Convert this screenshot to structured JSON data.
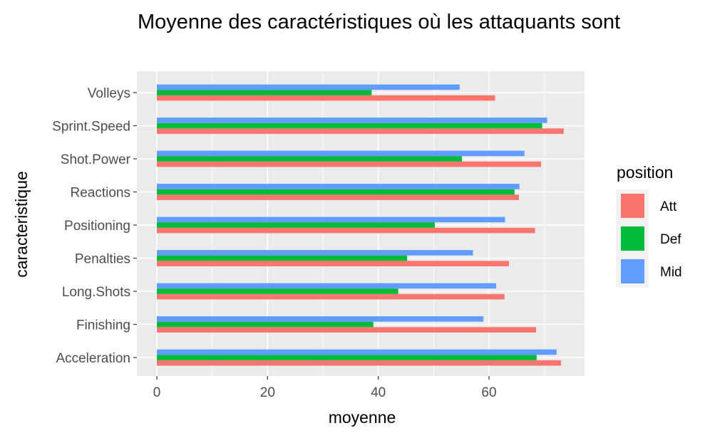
{
  "chart_data": {
    "type": "bar",
    "orientation": "horizontal",
    "title": "Moyenne des caractéristiques où les attaquants sont",
    "xlabel": "moyenne",
    "ylabel": "caracteristique",
    "xlim": [
      0,
      77
    ],
    "xticks": [
      0,
      20,
      40,
      60
    ],
    "xtick_labels": [
      "0",
      "20",
      "40",
      "60"
    ],
    "grid": true,
    "panel_background": "#ebebeb",
    "legend": {
      "title": "position",
      "placement": "right"
    },
    "categories": [
      "Acceleration",
      "Finishing",
      "Long.Shots",
      "Penalties",
      "Positioning",
      "Reactions",
      "Shot.Power",
      "Sprint.Speed",
      "Volleys"
    ],
    "series": [
      {
        "name": "Att",
        "color": "#F8766D",
        "values": [
          73.0,
          68.5,
          62.8,
          63.6,
          68.3,
          65.4,
          69.4,
          73.5,
          61.1
        ]
      },
      {
        "name": "Def",
        "color": "#00BA38",
        "values": [
          68.6,
          39.1,
          43.6,
          45.2,
          50.2,
          64.6,
          55.1,
          69.6,
          38.8
        ]
      },
      {
        "name": "Mid",
        "color": "#619CFF",
        "values": [
          72.2,
          59.0,
          61.3,
          57.1,
          62.9,
          65.5,
          66.4,
          70.5,
          54.7
        ]
      }
    ]
  }
}
